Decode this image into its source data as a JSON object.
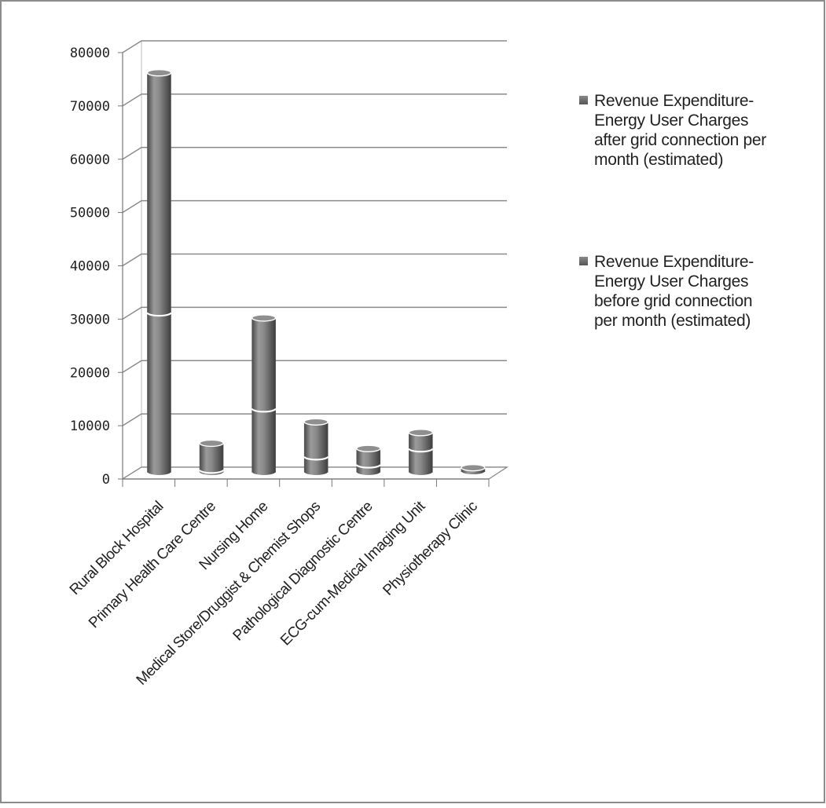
{
  "chart_data": {
    "type": "bar",
    "stacked": true,
    "three_d": true,
    "title": "",
    "xlabel": "",
    "ylabel": "",
    "ylim": [
      0,
      80000
    ],
    "yticks": [
      0,
      10000,
      20000,
      30000,
      40000,
      50000,
      60000,
      70000,
      80000
    ],
    "grid": true,
    "legend_position": "right",
    "categories": [
      "Rural Block Hospital",
      "Primary Health Care Centre",
      "Nursing Home",
      "Medical Store/Druggist & Chemist Shops",
      "Pathological Diagnostic Centre",
      "ECG-cum-Medical Imaging Unit",
      "Physiotherapy Clinic"
    ],
    "series": [
      {
        "name": "Revenue Expenditure-Energy User Charges before grid connection per month (estimated)",
        "legend_lines": [
          "Revenue Expenditure-",
          "Energy User Charges",
          "before grid connection",
          "per month (estimated)"
        ],
        "values": [
          30000,
          500,
          12000,
          3000,
          1500,
          4500,
          100
        ],
        "color": "#7a7a7a"
      },
      {
        "name": "Revenue Expenditure-Energy User Charges after grid connection per month (estimated)",
        "legend_lines": [
          "Revenue Expenditure-",
          "Energy User Charges",
          "after grid connection per",
          "month (estimated)"
        ],
        "values": [
          45000,
          5000,
          17000,
          6500,
          3000,
          3000,
          800
        ],
        "color": "#7a7a7a"
      }
    ],
    "legend_order": [
      1,
      0
    ]
  }
}
